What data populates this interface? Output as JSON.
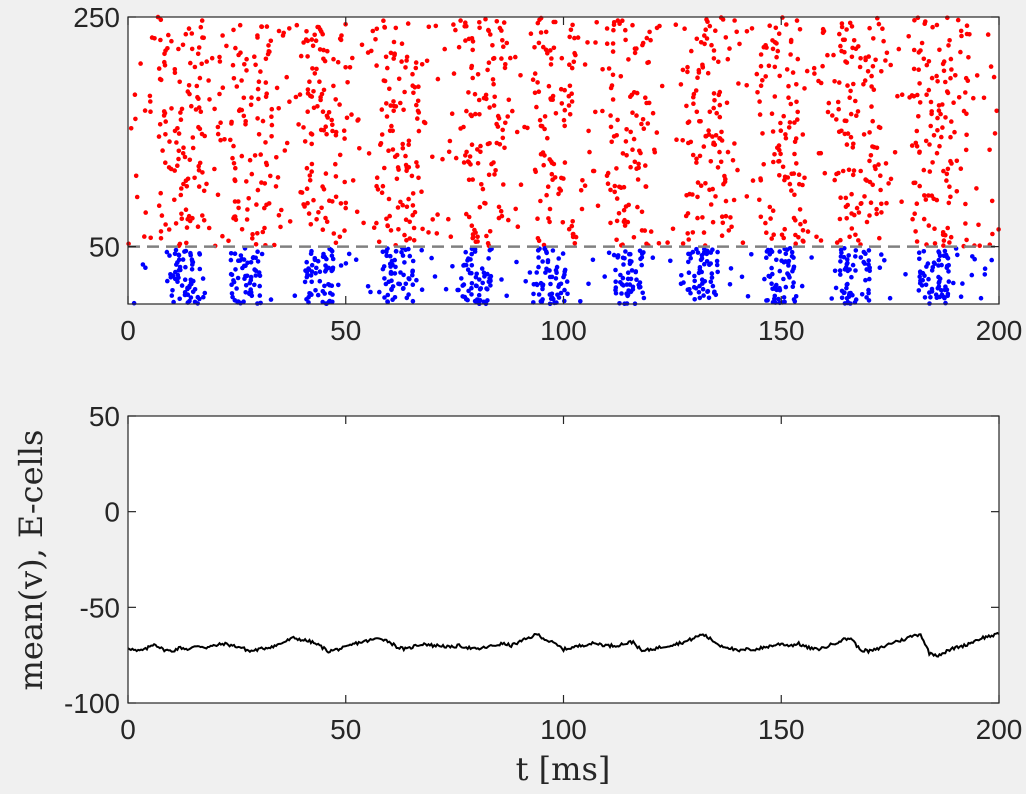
{
  "figure": {
    "background_color": "#f0f0f0",
    "axes_color": "#262626"
  },
  "chart_data": [
    {
      "type": "scatter",
      "title": "",
      "xlabel": "",
      "ylabel": "",
      "xlim": [
        0,
        200
      ],
      "ylim": [
        0,
        250
      ],
      "y_ticks": [
        50,
        250
      ],
      "x_ticks": [
        0,
        50,
        100,
        150,
        200
      ],
      "grid": false,
      "legend": "none",
      "separator_line": {
        "y": 50,
        "style": "dashed",
        "color": "#808080"
      },
      "series": [
        {
          "color": "#ff0000",
          "y_range": [
            50,
            250
          ],
          "description_points": "dense random spike raster for neurons 50 to 250 across full time range, density peaks near 12, 28, 45, 62, 82, 98, 115, 133, 150, 168, 185 ms",
          "burst_times": [
            12,
            28,
            45,
            62,
            82,
            98,
            115,
            133,
            150,
            168,
            185
          ]
        },
        {
          "color": "#0000ff",
          "y_range": [
            0,
            50
          ],
          "description_points": "clustered spike raster for neurons 0 to 50 in vertical bursts",
          "burst_times": [
            13,
            27,
            44,
            62,
            80,
            97,
            115,
            132,
            150,
            167,
            185
          ]
        }
      ]
    },
    {
      "type": "line",
      "title": "",
      "xlabel": "t [ms]",
      "ylabel": "mean(v), E-cells",
      "xlim": [
        0,
        200
      ],
      "ylim": [
        -100,
        50
      ],
      "y_ticks": [
        -100,
        -50,
        0,
        50
      ],
      "x_ticks": [
        0,
        50,
        100,
        150,
        200
      ],
      "grid": false,
      "legend": "none",
      "series": [
        {
          "color": "#000000",
          "x": [
            0,
            2,
            4,
            6,
            8,
            10,
            12,
            14,
            16,
            18,
            20,
            22,
            24,
            26,
            28,
            30,
            32,
            34,
            36,
            38,
            40,
            42,
            44,
            46,
            48,
            50,
            52,
            54,
            56,
            58,
            60,
            62,
            64,
            66,
            68,
            70,
            72,
            74,
            76,
            78,
            80,
            82,
            84,
            86,
            88,
            90,
            92,
            94,
            96,
            98,
            100,
            102,
            104,
            106,
            108,
            110,
            112,
            114,
            116,
            118,
            120,
            122,
            124,
            126,
            128,
            130,
            132,
            134,
            136,
            138,
            140,
            142,
            144,
            146,
            148,
            150,
            152,
            154,
            156,
            158,
            160,
            162,
            164,
            166,
            168,
            170,
            172,
            174,
            176,
            178,
            180,
            182,
            184,
            186,
            188,
            190,
            192,
            194,
            196,
            198,
            200
          ],
          "values": [
            -71,
            -73,
            -72,
            -69,
            -72,
            -73,
            -71,
            -72,
            -70,
            -71,
            -70,
            -69,
            -70,
            -71,
            -73,
            -72,
            -71,
            -70,
            -68,
            -66,
            -67,
            -68,
            -70,
            -73,
            -72,
            -71,
            -69,
            -68,
            -67,
            -66,
            -68,
            -71,
            -72,
            -70,
            -69,
            -70,
            -70,
            -71,
            -70,
            -71,
            -72,
            -71,
            -70,
            -69,
            -70,
            -68,
            -66,
            -64,
            -67,
            -69,
            -72,
            -71,
            -70,
            -69,
            -69,
            -70,
            -70,
            -69,
            -68,
            -73,
            -72,
            -71,
            -70,
            -69,
            -68,
            -66,
            -64,
            -67,
            -70,
            -71,
            -73,
            -72,
            -72,
            -71,
            -70,
            -69,
            -70,
            -69,
            -71,
            -72,
            -71,
            -69,
            -67,
            -66,
            -72,
            -73,
            -72,
            -70,
            -68,
            -67,
            -65,
            -64,
            -74,
            -75,
            -73,
            -71,
            -70,
            -68,
            -66,
            -65,
            -64
          ]
        }
      ]
    }
  ]
}
